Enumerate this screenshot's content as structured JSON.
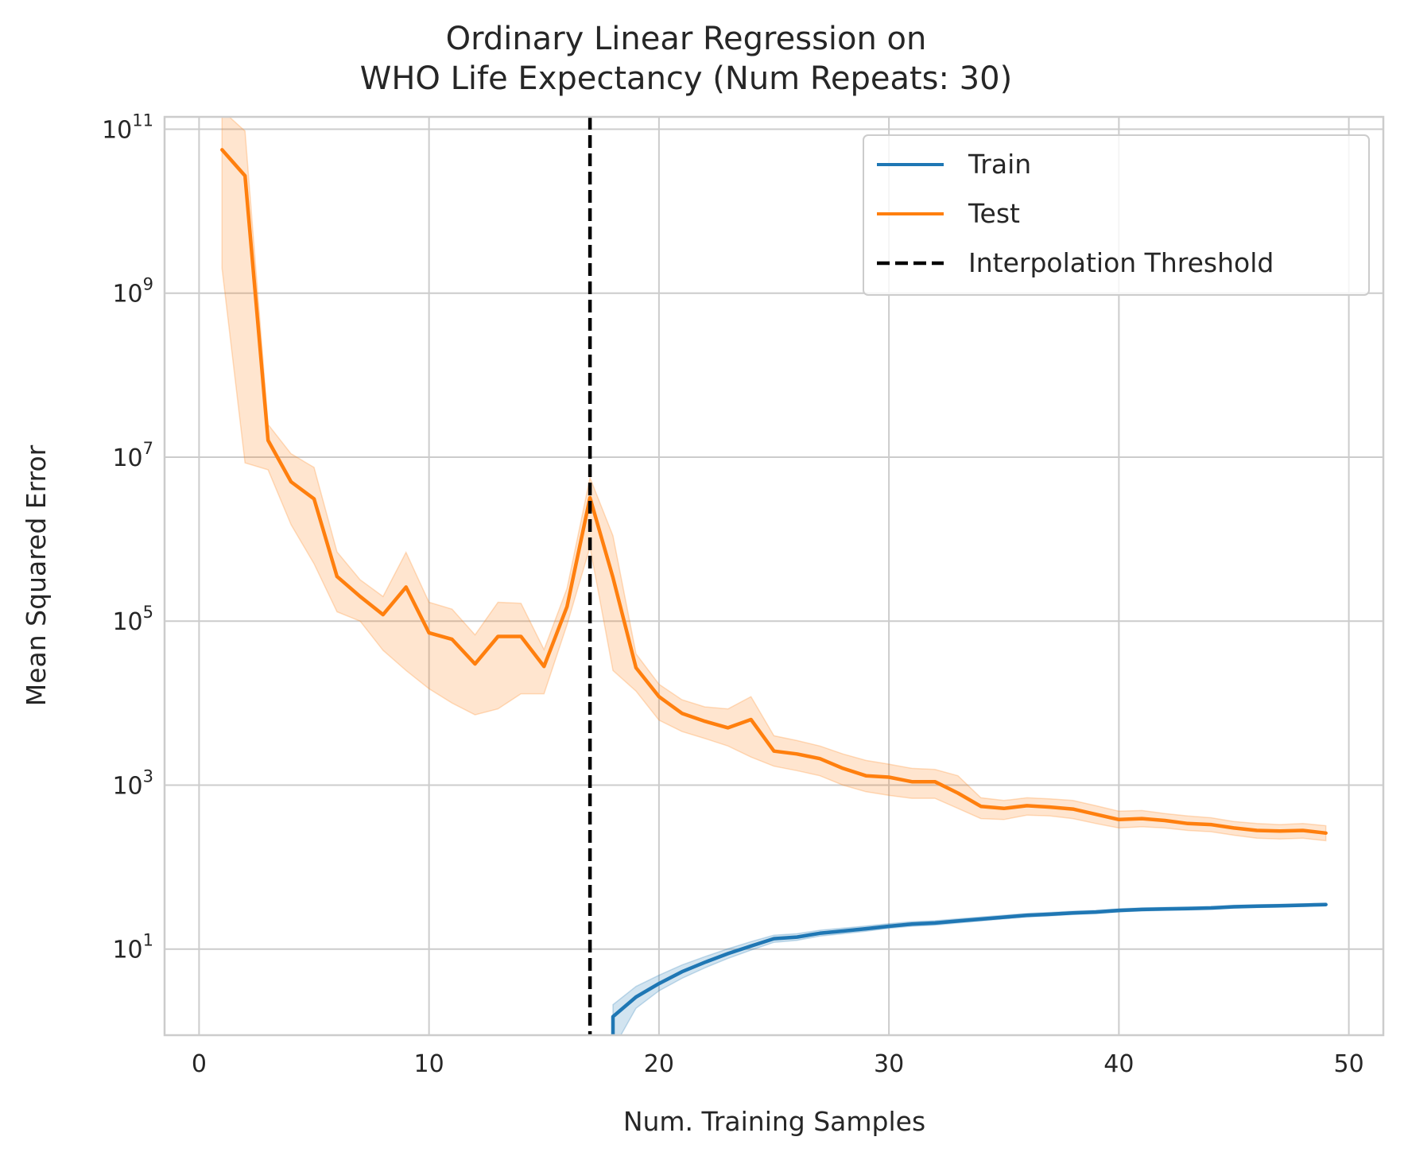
{
  "chart_data": {
    "type": "line",
    "title": [
      "Ordinary Linear Regression on",
      "WHO Life Expectancy (Num Repeats: 30)"
    ],
    "xlabel": "Num. Training Samples",
    "ylabel": "Mean Squared Error",
    "xlim": [
      -1.5,
      51.5
    ],
    "ylim_log10": [
      -0.05,
      11.15
    ],
    "yscale": "log",
    "grid": true,
    "legend_position": "top-right",
    "x_ticks": [
      0,
      10,
      20,
      30,
      40,
      50
    ],
    "y_ticks": [
      {
        "base": "10",
        "exp": "1",
        "log10": 1
      },
      {
        "base": "10",
        "exp": "3",
        "log10": 3
      },
      {
        "base": "10",
        "exp": "5",
        "log10": 5
      },
      {
        "base": "10",
        "exp": "7",
        "log10": 7
      },
      {
        "base": "10",
        "exp": "9",
        "log10": 9
      },
      {
        "base": "10",
        "exp": "11",
        "log10": 11
      }
    ],
    "series": [
      {
        "name": "Train",
        "color": "#1f77b4",
        "x": [
          18,
          19,
          20,
          21,
          22,
          23,
          24,
          25,
          26,
          27,
          28,
          29,
          30,
          31,
          32,
          33,
          34,
          35,
          36,
          37,
          38,
          39,
          40,
          41,
          42,
          43,
          44,
          45,
          46,
          47,
          48,
          49
        ],
        "y": [
          1.5,
          2.6,
          3.8,
          5.3,
          6.9,
          8.8,
          10.9,
          13.4,
          14.0,
          15.6,
          16.6,
          17.7,
          19.0,
          20.2,
          20.8,
          22.0,
          23.2,
          24.5,
          25.8,
          26.6,
          27.6,
          28.3,
          29.6,
          30.4,
          30.9,
          31.2,
          31.7,
          32.8,
          33.3,
          33.8,
          34.3,
          34.9
        ],
        "y_lower": [
          0.6,
          1.9,
          3.1,
          4.4,
          5.9,
          7.7,
          9.7,
          12.1,
          12.8,
          14.4,
          15.4,
          16.5,
          17.9,
          19.0,
          19.6,
          20.8,
          22.0,
          23.3,
          24.6,
          25.4,
          26.4,
          27.1,
          28.4,
          29.2,
          29.7,
          30.0,
          30.5,
          31.6,
          32.1,
          32.6,
          33.1,
          33.7
        ],
        "y_upper": [
          2.1,
          3.5,
          4.8,
          6.4,
          8.1,
          10.1,
          12.3,
          14.8,
          15.4,
          17.0,
          18.0,
          19.1,
          20.4,
          21.6,
          22.2,
          23.4,
          24.6,
          25.9,
          27.2,
          28.0,
          29.0,
          29.7,
          31.0,
          31.8,
          32.3,
          32.6,
          33.1,
          34.2,
          34.7,
          35.2,
          35.7,
          36.3
        ]
      },
      {
        "name": "Test",
        "color": "#ff7f0e",
        "x": [
          1,
          2,
          3,
          4,
          5,
          6,
          7,
          8,
          9,
          10,
          11,
          12,
          13,
          14,
          15,
          16,
          17,
          18,
          19,
          20,
          21,
          22,
          23,
          24,
          25,
          26,
          27,
          28,
          29,
          30,
          31,
          32,
          33,
          34,
          35,
          36,
          37,
          38,
          39,
          40,
          41,
          42,
          43,
          44,
          45,
          46,
          47,
          48,
          49
        ],
        "y": [
          56000000000,
          27000000000,
          16000000,
          5000000,
          3100000,
          350000,
          200000,
          120000,
          260000,
          72000,
          60000,
          30000,
          65000,
          65000,
          28000,
          150000,
          3200000,
          340000,
          27000,
          12000,
          7500,
          6000,
          5000,
          6300,
          2600,
          2400,
          2100,
          1600,
          1300,
          1250,
          1100,
          1100,
          800,
          550,
          520,
          560,
          540,
          510,
          440,
          380,
          390,
          370,
          340,
          330,
          300,
          280,
          275,
          280,
          260
        ],
        "y_lower": [
          2000000000,
          8500000,
          7000000,
          1500000,
          500000,
          130000,
          100000,
          44000,
          25000,
          15000,
          10000,
          7200,
          8500,
          13000,
          13000,
          90000,
          800000,
          25000,
          14000,
          6200,
          4500,
          3700,
          3000,
          2200,
          1700,
          1500,
          1300,
          1000,
          830,
          750,
          690,
          690,
          520,
          390,
          380,
          430,
          420,
          390,
          340,
          300,
          310,
          300,
          280,
          270,
          245,
          225,
          220,
          225,
          210
        ],
        "y_upper": [
          170000000000,
          95000000000,
          25000000,
          11000000,
          7500000,
          700000,
          320000,
          200000,
          690000,
          170000,
          140000,
          68000,
          170000,
          165000,
          45000,
          250000,
          5600000,
          1100000,
          40000,
          17000,
          11000,
          9000,
          8500,
          12000,
          4000,
          3500,
          3000,
          2400,
          2000,
          1800,
          1600,
          1550,
          1300,
          700,
          650,
          700,
          680,
          650,
          560,
          480,
          490,
          450,
          420,
          400,
          360,
          340,
          330,
          340,
          320
        ]
      }
    ],
    "threshold": {
      "name": "Interpolation Threshold",
      "x": 17,
      "color": "#000000"
    }
  }
}
